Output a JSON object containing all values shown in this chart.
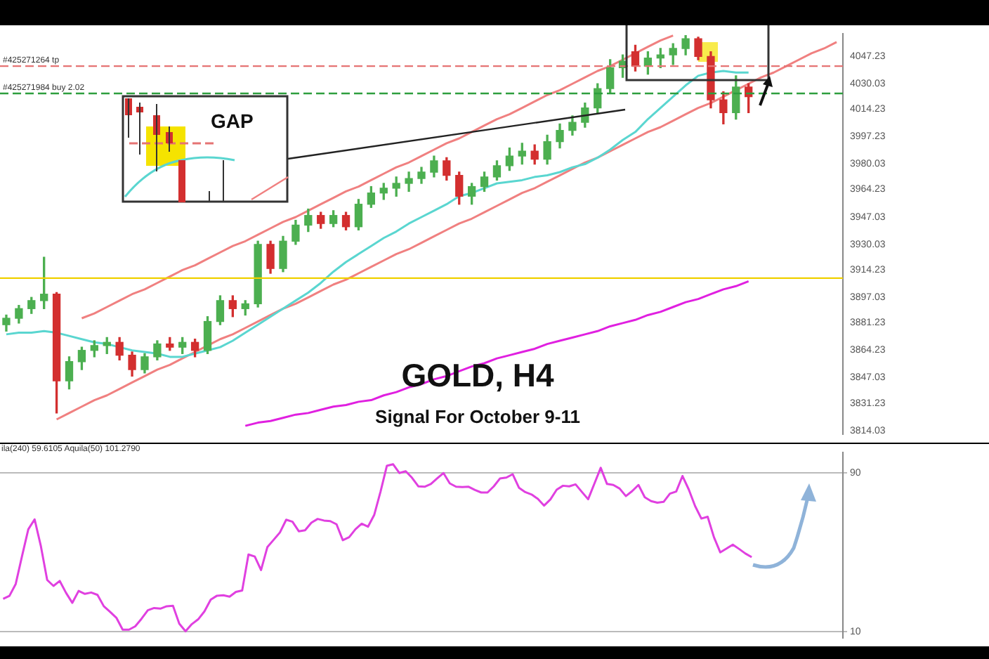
{
  "chart_data": [
    {
      "type": "candlestick",
      "title": "GOLD, H4",
      "subtitle": "Signal For October 9-11",
      "annotations": [
        "GAP"
      ],
      "categories": [
        null,
        null,
        null,
        null,
        null,
        null,
        null,
        null,
        null,
        null,
        null,
        null,
        null,
        null,
        null,
        null,
        null,
        null,
        null,
        null,
        null,
        null,
        null,
        null,
        null,
        null,
        null,
        null,
        null,
        null,
        null,
        null,
        null,
        null,
        null,
        null,
        null,
        null,
        null,
        null,
        null,
        null,
        null,
        null,
        null,
        null,
        null,
        null,
        null,
        null,
        null,
        null,
        null,
        null,
        null,
        null,
        null,
        null,
        null,
        null,
        null,
        null,
        null,
        null,
        null,
        null,
        null
      ],
      "ohlc": [
        [
          3880,
          3886,
          3876,
          3884
        ],
        [
          3884,
          3892,
          3881,
          3890
        ],
        [
          3890,
          3897,
          3887,
          3895
        ],
        [
          3895,
          3922,
          3890,
          3899
        ],
        [
          3899,
          3900,
          3825,
          3845
        ],
        [
          3845,
          3860,
          3840,
          3857
        ],
        [
          3857,
          3866,
          3852,
          3864
        ],
        [
          3864,
          3870,
          3860,
          3867
        ],
        [
          3867,
          3872,
          3862,
          3869
        ],
        [
          3869,
          3872,
          3858,
          3861
        ],
        [
          3861,
          3863,
          3848,
          3852
        ],
        [
          3852,
          3862,
          3850,
          3860
        ],
        [
          3860,
          3870,
          3858,
          3868
        ],
        [
          3868,
          3872,
          3864,
          3866
        ],
        [
          3866,
          3872,
          3862,
          3869
        ],
        [
          3869,
          3871,
          3860,
          3864
        ],
        [
          3864,
          3885,
          3862,
          3882
        ],
        [
          3882,
          3898,
          3880,
          3895
        ],
        [
          3895,
          3898,
          3885,
          3890
        ],
        [
          3890,
          3895,
          3886,
          3893
        ],
        [
          3893,
          3932,
          3891,
          3930
        ],
        [
          3930,
          3932,
          3912,
          3915
        ],
        [
          3915,
          3935,
          3913,
          3932
        ],
        [
          3932,
          3945,
          3930,
          3942
        ],
        [
          3942,
          3952,
          3938,
          3948
        ],
        [
          3948,
          3950,
          3940,
          3943
        ],
        [
          3943,
          3951,
          3941,
          3948
        ],
        [
          3948,
          3950,
          3939,
          3941
        ],
        [
          3941,
          3958,
          3939,
          3955
        ],
        [
          3955,
          3966,
          3953,
          3962
        ],
        [
          3962,
          3968,
          3958,
          3965
        ],
        [
          3965,
          3972,
          3960,
          3968
        ],
        [
          3968,
          3975,
          3963,
          3971
        ],
        [
          3971,
          3978,
          3968,
          3975
        ],
        [
          3975,
          3985,
          3972,
          3982
        ],
        [
          3982,
          3984,
          3970,
          3973
        ],
        [
          3973,
          3975,
          3955,
          3960
        ],
        [
          3960,
          3968,
          3955,
          3966
        ],
        [
          3966,
          3975,
          3963,
          3972
        ],
        [
          3972,
          3982,
          3970,
          3979
        ],
        [
          3979,
          3990,
          3976,
          3985
        ],
        [
          3985,
          3993,
          3980,
          3988
        ],
        [
          3988,
          3992,
          3980,
          3983
        ],
        [
          3983,
          3998,
          3980,
          3994
        ],
        [
          3994,
          4005,
          3990,
          4001
        ],
        [
          4001,
          4010,
          3998,
          4006
        ],
        [
          4006,
          4018,
          4003,
          4015
        ],
        [
          4015,
          4030,
          4012,
          4027
        ],
        [
          4027,
          4045,
          4024,
          4040
        ],
        [
          4040,
          4048,
          4034,
          4044
        ],
        [
          4050,
          4054,
          4038,
          4041
        ],
        [
          4041,
          4050,
          4036,
          4046
        ],
        [
          4046,
          4052,
          4040,
          4048
        ],
        [
          4048,
          4055,
          4042,
          4052
        ],
        [
          4052,
          4060,
          4048,
          4058
        ],
        [
          4058,
          4059,
          4045,
          4047
        ],
        [
          4047,
          4050,
          4015,
          4020
        ],
        [
          4020,
          4025,
          4005,
          4012
        ],
        [
          4012,
          4035,
          4008,
          4028
        ],
        [
          4028,
          4030,
          4012,
          4022
        ],
        null,
        null,
        null,
        null,
        null,
        null,
        null
      ],
      "colors": [
        "#4caf50",
        "#4caf50",
        "#4caf50",
        "#4caf50",
        "#d32f2f",
        "#4caf50",
        "#4caf50",
        "#4caf50",
        "#4caf50",
        "#d32f2f",
        "#d32f2f",
        "#4caf50",
        "#4caf50",
        "#d32f2f",
        "#4caf50",
        "#d32f2f",
        "#4caf50",
        "#4caf50",
        "#d32f2f",
        "#4caf50",
        "#4caf50",
        "#d32f2f",
        "#4caf50",
        "#4caf50",
        "#4caf50",
        "#d32f2f",
        "#4caf50",
        "#d32f2f",
        "#4caf50",
        "#4caf50",
        "#4caf50",
        "#4caf50",
        "#4caf50",
        "#4caf50",
        "#4caf50",
        "#d32f2f",
        "#d32f2f",
        "#4caf50",
        "#4caf50",
        "#4caf50",
        "#4caf50",
        "#4caf50",
        "#d32f2f",
        "#4caf50",
        "#4caf50",
        "#4caf50",
        "#4caf50",
        "#4caf50",
        "#4caf50",
        "#4caf50",
        "#d32f2f",
        "#4caf50",
        "#4caf50",
        "#4caf50",
        "#4caf50",
        "#d32f2f",
        "#d32f2f",
        "#d32f2f",
        "#4caf50",
        "#d32f2f",
        null,
        null,
        null,
        null,
        null,
        null,
        null
      ],
      "ylim": [
        3812,
        4061
      ],
      "yticks": [
        4047.23,
        4030.03,
        4014.23,
        3997.23,
        3980.03,
        3964.23,
        3947.03,
        3930.03,
        3914.23,
        3897.03,
        3881.23,
        3864.23,
        3847.03,
        3831.23,
        3814.03
      ],
      "tick_labels": "y",
      "ref_lines": [
        {
          "axis": "y",
          "value": 4041,
          "label": "#425271264 tp",
          "color": "#e57373",
          "line_style": "dashed"
        },
        {
          "axis": "y",
          "value": 4024,
          "label": "#425271984 buy 2.02",
          "color": "#2e9e3e",
          "line_style": "dashed"
        },
        {
          "axis": "y",
          "value": 3909,
          "color": "#f0d000",
          "line_style": "solid"
        }
      ],
      "series": [
        {
          "type": "line",
          "color": "#5ad6d0",
          "values": [
            3874,
            3875,
            3875,
            3876,
            3875,
            3873,
            3871,
            3869,
            3868,
            3866,
            3864,
            3863,
            3862,
            3860,
            3860,
            3862,
            3864,
            3866,
            3870,
            3875,
            3880,
            3885,
            3890,
            3895,
            3900,
            3906,
            3913,
            3919,
            3924,
            3929,
            3934,
            3938,
            3943,
            3947,
            3951,
            3955,
            3960,
            3962,
            3965,
            3968,
            3969,
            3970,
            3972,
            3973,
            3975,
            3978,
            3980,
            3984,
            3989,
            3995,
            4000,
            4008,
            4015,
            4022,
            4029,
            4035,
            4037,
            4038,
            4037,
            4037,
            null,
            null,
            null,
            null,
            null,
            null,
            null
          ]
        },
        {
          "type": "line",
          "color": "#e020e0",
          "values": [
            null,
            null,
            null,
            null,
            null,
            null,
            null,
            null,
            null,
            null,
            null,
            null,
            null,
            null,
            null,
            null,
            null,
            null,
            null,
            3817,
            3819,
            3820,
            3822,
            3824,
            3825,
            3827,
            3829,
            3830,
            3832,
            3833,
            3836,
            3838,
            3841,
            3843,
            3846,
            3848,
            3851,
            3854,
            3856,
            3859,
            3861,
            3863,
            3865,
            3868,
            3870,
            3872,
            3874,
            3876,
            3879,
            3881,
            3883,
            3886,
            3888,
            3891,
            3894,
            3896,
            3899,
            3902,
            3904,
            3907,
            null,
            null,
            null,
            null,
            null,
            null,
            null
          ]
        },
        {
          "type": "line",
          "color": "#f08080",
          "values": [
            null,
            null,
            null,
            null,
            null,
            null,
            3884,
            3887,
            3891,
            3895,
            3899,
            3902,
            3906,
            3910,
            3914,
            3917,
            3921,
            3925,
            3929,
            3932,
            3936,
            3940,
            3944,
            3947,
            3951,
            3955,
            3959,
            3963,
            3966,
            3970,
            3974,
            3978,
            3981,
            3985,
            3989,
            3993,
            3996,
            4000,
            4004,
            4008,
            4011,
            4015,
            4019,
            4023,
            4026,
            4030,
            4034,
            4038,
            4041,
            4045,
            4049,
            4053,
            4057,
            4060,
            null,
            null,
            null,
            null,
            null,
            null,
            null,
            null,
            null,
            null,
            null,
            null,
            null
          ]
        },
        {
          "type": "line",
          "color": "#f08080",
          "values": [
            null,
            null,
            null,
            null,
            3821,
            3825,
            3829,
            3833,
            3836,
            3840,
            3844,
            3848,
            3852,
            3855,
            3859,
            3863,
            3867,
            3871,
            3874,
            3878,
            3882,
            3886,
            3890,
            3893,
            3897,
            3901,
            3905,
            3908,
            3912,
            3916,
            3920,
            3924,
            3927,
            3931,
            3935,
            3939,
            3943,
            3946,
            3950,
            3954,
            3958,
            3962,
            3965,
            3969,
            3973,
            3977,
            3981,
            3984,
            3988,
            3992,
            3996,
            4000,
            4003,
            4007,
            4011,
            4015,
            4018,
            4022,
            4026,
            4030,
            4034,
            4037,
            4041,
            4045,
            4049,
            4052,
            4056
          ]
        }
      ]
    },
    {
      "type": "line",
      "annotations": [
        "ila(240) 59.6105  Aquila(50) 101.2790"
      ],
      "color": "#e040e0",
      "categories": [
        null,
        null,
        null,
        null,
        null,
        null,
        null,
        null,
        null,
        null,
        null,
        null,
        null,
        null,
        null,
        null,
        null,
        null,
        null,
        null,
        null,
        null,
        null,
        null,
        null,
        null,
        null,
        null,
        null,
        null,
        null,
        null,
        null,
        null,
        null,
        null,
        null,
        null,
        null,
        null,
        null,
        null,
        null,
        null,
        null,
        null,
        null,
        null,
        null,
        null,
        null,
        null,
        null,
        null,
        null,
        null,
        null,
        null,
        null,
        null,
        null,
        null,
        null,
        null,
        null,
        null,
        null,
        null,
        null,
        null,
        null,
        null,
        null,
        null,
        null,
        null,
        null,
        null,
        null,
        null,
        null,
        null,
        null,
        null,
        null,
        null,
        null,
        null,
        null,
        null,
        null,
        null,
        null,
        null,
        null,
        null,
        null,
        null,
        null,
        null,
        null,
        null,
        null,
        null,
        null,
        null,
        null,
        null,
        null,
        null,
        null,
        null,
        null,
        null,
        null,
        null,
        null,
        null,
        null,
        null,
        null,
        null,
        null,
        null,
        null,
        null,
        null,
        null,
        null,
        null,
        null,
        null,
        null,
        null
      ],
      "values": [
        26.5,
        28,
        34,
        48,
        61.5,
        66.5,
        53,
        36,
        33,
        35.5,
        29.5,
        24.5,
        30.5,
        29,
        29.7,
        28.5,
        22.8,
        20,
        17,
        11,
        11,
        12.7,
        16.5,
        20.8,
        21.9,
        21.6,
        22.8,
        23,
        14,
        10.2,
        13.8,
        16.2,
        20.2,
        26.1,
        28.1,
        28.3,
        27.6,
        30,
        30.7,
        48.8,
        47.8,
        41,
        52.5,
        56.2,
        59.9,
        66.3,
        65.3,
        60.5,
        61,
        64.8,
        66.7,
        65.9,
        65.6,
        64,
        56,
        57.5,
        61.5,
        64.3,
        62.8,
        68.8,
        80.5,
        93.4,
        94.2,
        89.8,
        90.7,
        87.4,
        83.1,
        82.9,
        84.3,
        87.1,
        89.8,
        84.6,
        82.9,
        82.7,
        82.9,
        81.3,
        80,
        80,
        83.1,
        87.1,
        87.5,
        89.2,
        82.4,
        80.2,
        79,
        76.8,
        73.4,
        76.5,
        81.4,
        83.4,
        83.1,
        84.1,
        80.3,
        76.6,
        84.5,
        92.4,
        84.3,
        83.8,
        82,
        78.2,
        80.7,
        83.8,
        77.6,
        75.7,
        74.9,
        75.3,
        79.4,
        80.5,
        88.3,
        81.5,
        73.2,
        66.9,
        67.8,
        57.5,
        49.9,
        51.8,
        53.8,
        51.6,
        49.3,
        47.5,
        null,
        null,
        null,
        null,
        null,
        null,
        null,
        null,
        null,
        null,
        null,
        null,
        null,
        null
      ],
      "ylim": [
        7,
        100
      ],
      "yticks": [
        10,
        90
      ],
      "grid": "y",
      "tick_labels": "y"
    }
  ]
}
